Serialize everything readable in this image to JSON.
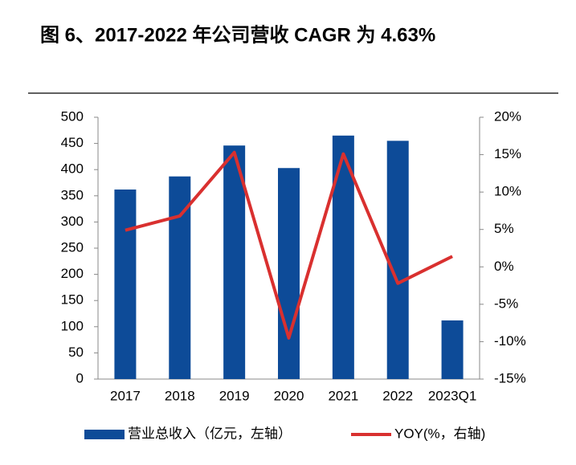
{
  "chart_data": {
    "type": "bar_line",
    "title": "图 6、2017-2022 年公司营收 CAGR 为 4.63%",
    "categories": [
      "2017",
      "2018",
      "2019",
      "2020",
      "2021",
      "2022",
      "2023Q1"
    ],
    "series": [
      {
        "name": "营业总收入（亿元，左轴）",
        "type": "bar",
        "color": "#0d4b98",
        "values": [
          362,
          387,
          446,
          403,
          465,
          455,
          112
        ]
      },
      {
        "name": "YOY(%，右轴)",
        "type": "line",
        "axis": "y2",
        "color": "#d9302f",
        "values": [
          4.9,
          6.8,
          15.3,
          -9.5,
          15.1,
          -2.2,
          1.4
        ]
      }
    ],
    "ylim": [
      0,
      500
    ],
    "yticks": [
      0,
      50,
      100,
      150,
      200,
      250,
      300,
      350,
      400,
      450,
      500
    ],
    "y2lim": [
      -15,
      20
    ],
    "y2ticks": [
      {
        "value": -15,
        "label": "-15%"
      },
      {
        "value": -10,
        "label": "-10%"
      },
      {
        "value": -5,
        "label": "-5%"
      },
      {
        "value": 0,
        "label": "0%"
      },
      {
        "value": 5,
        "label": "5%"
      },
      {
        "value": 10,
        "label": "10%"
      },
      {
        "value": 15,
        "label": "15%"
      },
      {
        "value": 20,
        "label": "20%"
      }
    ],
    "grid": false
  }
}
